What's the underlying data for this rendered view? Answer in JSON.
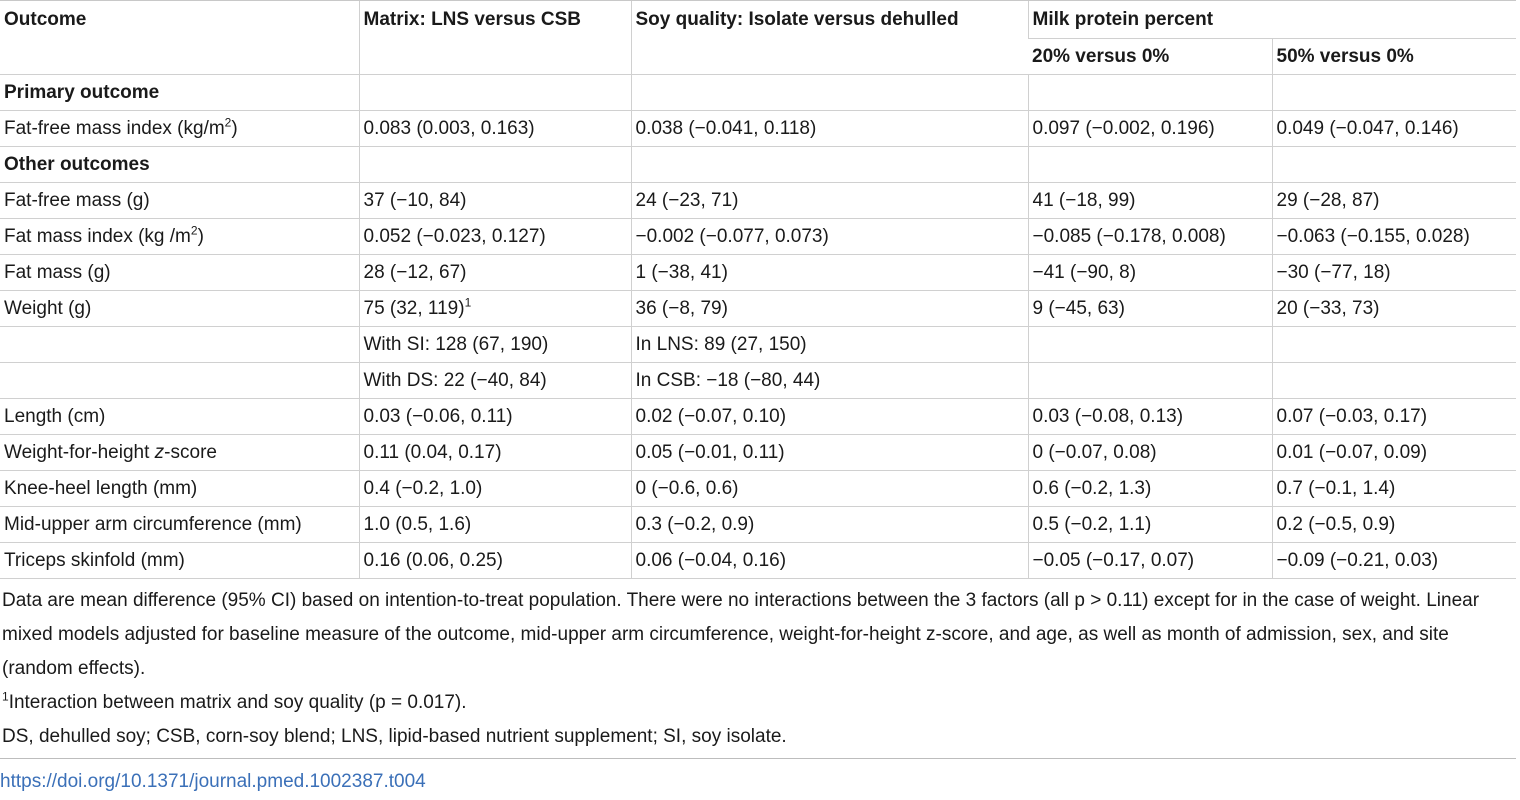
{
  "table": {
    "headers": {
      "outcome": "Outcome",
      "matrix": "Matrix: LNS versus CSB",
      "soy": "Soy quality: Isolate versus dehulled",
      "milk": "Milk protein percent",
      "milk20": "20% versus 0%",
      "milk50": "50% versus 0%"
    },
    "sections": {
      "primary": "Primary outcome",
      "other": "Other outcomes"
    },
    "rows": {
      "ffmi": {
        "label": "Fat-free mass index (kg/m",
        "sup": "2",
        "label_end": ")",
        "matrix": "0.083 (0.003, 0.163)",
        "soy": "0.038 (−0.041, 0.118)",
        "m20": "0.097 (−0.002, 0.196)",
        "m50": "0.049 (−0.047, 0.146)"
      },
      "ffm": {
        "label": "Fat-free mass (g)",
        "matrix": "37 (−10, 84)",
        "soy": "24 (−23, 71)",
        "m20": "41 (−18, 99)",
        "m50": "29 (−28, 87)"
      },
      "fmi": {
        "label": "Fat mass index (kg /m",
        "sup": "2",
        "label_end": ")",
        "matrix": "0.052 (−0.023, 0.127)",
        "soy": "−0.002 (−0.077, 0.073)",
        "m20": "−0.085 (−0.178, 0.008)",
        "m50": "−0.063 (−0.155, 0.028)"
      },
      "fm": {
        "label": "Fat mass (g)",
        "matrix": "28 (−12, 67)",
        "soy": "1 (−38, 41)",
        "m20": "−41 (−90, 8)",
        "m50": "−30 (−77, 18)"
      },
      "weight": {
        "label": "Weight (g)",
        "matrix": "75 (32, 119)",
        "matrix_sup": "1",
        "soy": "36 (−8, 79)",
        "m20": "9 (−45, 63)",
        "m50": "20 (−33, 73)"
      },
      "weight_si": {
        "matrix": "With SI: 128 (67, 190)",
        "soy": "In LNS: 89 (27, 150)"
      },
      "weight_ds": {
        "matrix": "With DS: 22 (−40, 84)",
        "soy": "In CSB: −18 (−80, 44)"
      },
      "length": {
        "label": "Length (cm)",
        "matrix": "0.03 (−0.06, 0.11)",
        "soy": "0.02 (−0.07, 0.10)",
        "m20": "0.03 (−0.08, 0.13)",
        "m50": "0.07 (−0.03, 0.17)"
      },
      "whz": {
        "label_pre": "Weight-for-height ",
        "label_italic": "z",
        "label_post": "-score",
        "matrix": "0.11 (0.04, 0.17)",
        "soy": "0.05 (−0.01, 0.11)",
        "m20": "0 (−0.07, 0.08)",
        "m50": "0.01 (−0.07, 0.09)"
      },
      "knee": {
        "label": "Knee-heel length (mm)",
        "matrix": "0.4 (−0.2, 1.0)",
        "soy": "0 (−0.6, 0.6)",
        "m20": "0.6 (−0.2, 1.3)",
        "m50": "0.7 (−0.1, 1.4)"
      },
      "muac": {
        "label": "Mid-upper arm circumference (mm)",
        "matrix": "1.0 (0.5, 1.6)",
        "soy": "0.3 (−0.2, 0.9)",
        "m20": "0.5 (−0.2, 1.1)",
        "m50": "0.2 (−0.5, 0.9)"
      },
      "triceps": {
        "label": "Triceps skinfold (mm)",
        "matrix": "0.16 (0.06, 0.25)",
        "soy": "0.06 (−0.04, 0.16)",
        "m20": "−0.05 (−0.17, 0.07)",
        "m50": "−0.09 (−0.21, 0.03)"
      }
    }
  },
  "notes": {
    "main": "Data are mean difference (95% CI) based on intention-to-treat population. There were no interactions between the 3 factors (all p > 0.11) except for in the case of weight. Linear mixed models adjusted for baseline measure of the outcome, mid-upper arm circumference, weight-for-height z-score, and age, as well as month of admission, sex, and site (random effects).",
    "footnote_mark": "1",
    "footnote": "Interaction between matrix and soy quality (p = 0.017).",
    "abbrev": "DS, dehulled soy; CSB, corn-soy blend; LNS, lipid-based nutrient supplement; SI, soy isolate."
  },
  "doi": "https://doi.org/10.1371/journal.pmed.1002387.t004"
}
